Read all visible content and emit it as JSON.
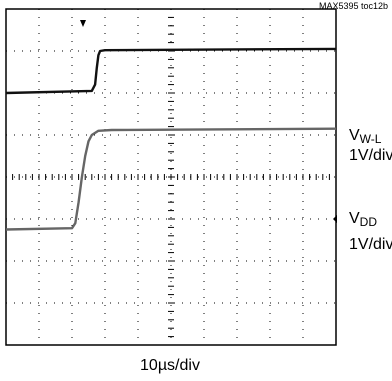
{
  "figure_ref": "MAX5395 toc12b",
  "timebase": "10µs/div",
  "colors": {
    "grid": "#000000",
    "trace_wl": "#111111",
    "trace_vdd": "#666666"
  },
  "chart_data": {
    "type": "line",
    "x_unit": "div",
    "xlim": [
      0,
      10
    ],
    "ylim": [
      0,
      8
    ],
    "grid_divisions": {
      "x": 10,
      "y": 8
    },
    "series": [
      {
        "label_main": "V",
        "label_sub": "W-L",
        "scale": "1V/div",
        "x": [
          0,
          2.6,
          2.7,
          2.75,
          2.8,
          2.85,
          3.0,
          10
        ],
        "y": [
          6.0,
          6.05,
          6.2,
          6.6,
          6.9,
          7.0,
          7.02,
          7.05
        ]
      },
      {
        "label_main": "V",
        "label_sub": "DD",
        "scale": "1V/div",
        "x": [
          0,
          2.0,
          2.1,
          2.2,
          2.3,
          2.4,
          2.5,
          2.6,
          2.8,
          3.2,
          10
        ],
        "y": [
          2.75,
          2.78,
          2.9,
          3.4,
          4.0,
          4.5,
          4.85,
          5.0,
          5.1,
          5.12,
          5.15
        ]
      }
    ]
  }
}
